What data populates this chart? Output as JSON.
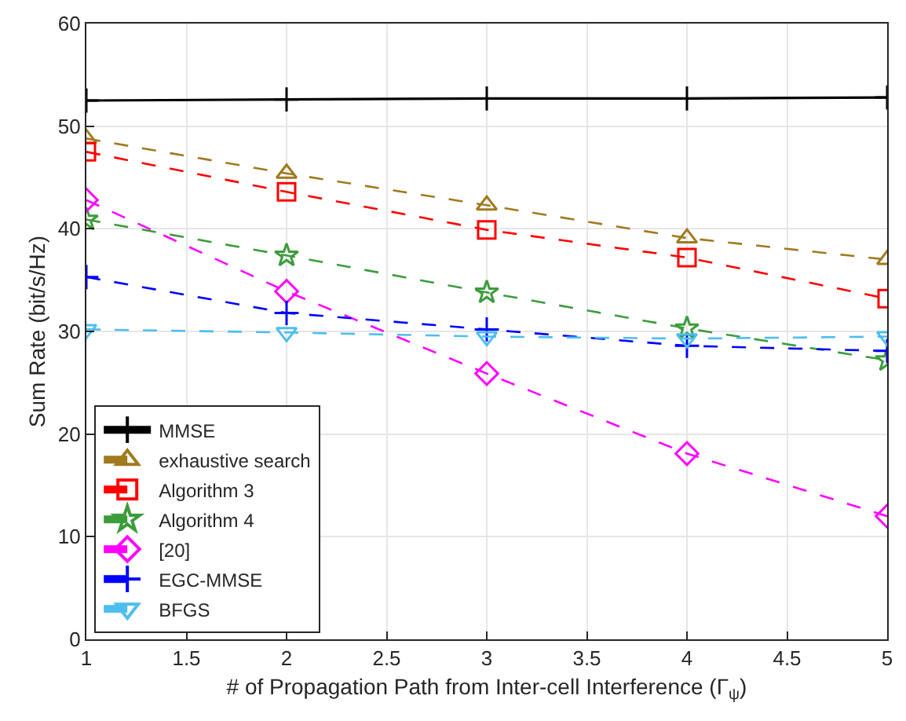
{
  "chart_data": {
    "type": "line",
    "xlabel": "# of Propagation Path from Inter-cell Interference (Γ$_{ψ}$)",
    "ylabel": "Sum Rate (bit/s/Hz)",
    "x": [
      1,
      2,
      3,
      4,
      5
    ],
    "series": [
      {
        "name": "MMSE",
        "color": "#000000",
        "marker": "cross",
        "line_style": "solid",
        "values": [
          52.5,
          52.6,
          52.7,
          52.7,
          52.8
        ]
      },
      {
        "name": "exhaustive search",
        "color": "#a07a1e",
        "marker": "triangle",
        "line_style": "dashed",
        "values": [
          48.8,
          45.4,
          42.3,
          39.1,
          37.0
        ]
      },
      {
        "name": "Algorithm 3",
        "color": "#ff0000",
        "marker": "square",
        "line_style": "dashed",
        "values": [
          47.5,
          43.6,
          39.9,
          37.2,
          33.2
        ]
      },
      {
        "name": "Algorithm 4",
        "color": "#3c9c3c",
        "marker": "star",
        "line_style": "dashed",
        "values": [
          40.9,
          37.4,
          33.8,
          30.3,
          27.2
        ]
      },
      {
        "name": "[20]",
        "color": "#ff00ff",
        "marker": "diamond",
        "line_style": "dashed",
        "values": [
          42.8,
          33.9,
          25.9,
          18.1,
          12.0
        ]
      },
      {
        "name": "EGC-MMSE",
        "color": "#0000ff",
        "marker": "cross",
        "line_style": "dashed",
        "values": [
          35.3,
          31.8,
          30.2,
          28.6,
          28.1
        ]
      },
      {
        "name": "BFGS",
        "color": "#4dbeee",
        "marker": "triangle-down",
        "line_style": "dashed",
        "values": [
          30.2,
          29.9,
          29.5,
          29.3,
          29.5
        ]
      }
    ],
    "xlim": [
      1,
      5
    ],
    "xticks": [
      1,
      1.5,
      2,
      2.5,
      3,
      3.5,
      4,
      4.5,
      5
    ],
    "ylim": [
      0,
      60
    ],
    "yticks": [
      0,
      10,
      20,
      30,
      40,
      50,
      60
    ],
    "grid": true,
    "legend": "bottom left"
  }
}
